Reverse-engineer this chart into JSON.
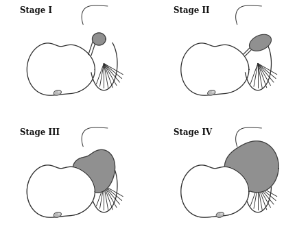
{
  "background_color": "#ffffff",
  "stages": [
    "Stage I",
    "Stage II",
    "Stage III",
    "Stage IV"
  ],
  "tumor_color": "#909090",
  "tumor_edge": "#3a3a3a",
  "brain_fill": "#ffffff",
  "brain_edge": "#2a2a2a",
  "nerve_color": "#2a2a2a",
  "cochlea_fill": "#b8b8b8",
  "cochlea_edge": "#444444",
  "label_fontsize": 8.5,
  "text_color": "#111111"
}
